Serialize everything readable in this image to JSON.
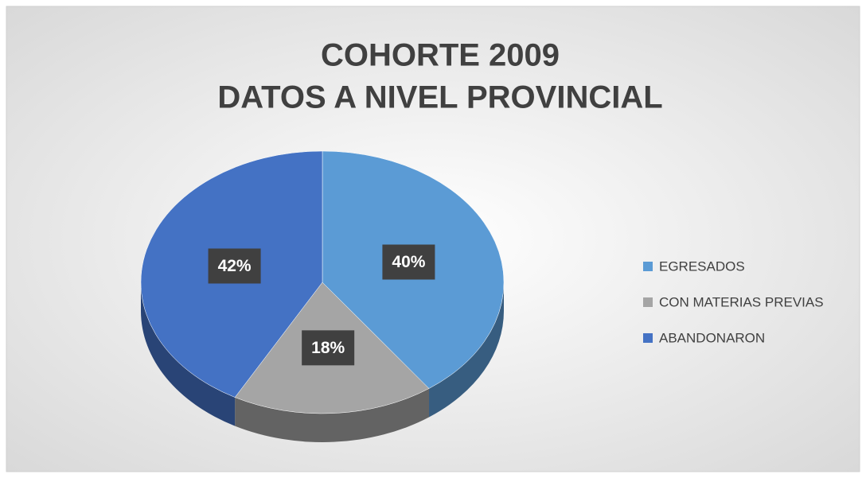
{
  "chart_data": {
    "type": "pie",
    "title": [
      "COHORTE 2009",
      "DATOS A NIVEL PROVINCIAL"
    ],
    "categories": [
      "EGRESADOS",
      "CON MATERIAS PREVIAS",
      "ABANDONARON"
    ],
    "values": [
      40,
      18,
      42
    ],
    "value_labels": [
      "40%",
      "18%",
      "42%"
    ],
    "colors": [
      "#5b9bd5",
      "#a5a5a5",
      "#4472c4"
    ],
    "legend": "right"
  }
}
